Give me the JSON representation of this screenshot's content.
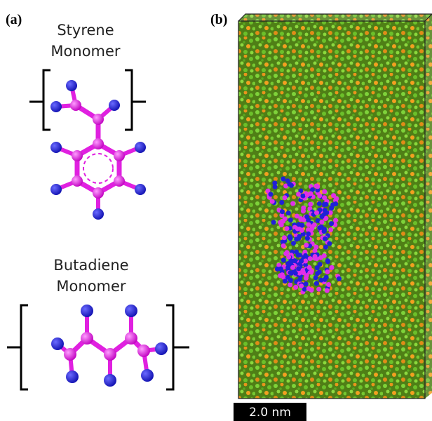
{
  "panel_a": {
    "label": "(a)",
    "styrene_title": [
      "Styrene",
      "Monomer"
    ],
    "butadiene_title": [
      "Butadiene",
      "Monomer"
    ]
  },
  "panel_b": {
    "label": "(b)",
    "scale_bar": "2.0 nm"
  }
}
